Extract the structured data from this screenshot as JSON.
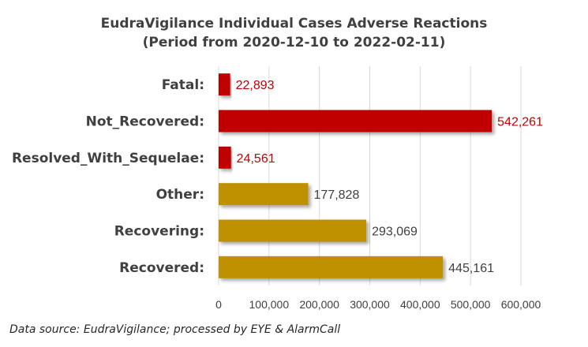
{
  "chart_data": {
    "type": "bar",
    "orientation": "horizontal",
    "title": "EudraVigilance Individual Cases Adverse Reactions",
    "subtitle": "(Period from 2020-12-10 to 2022-02-11)",
    "categories": [
      "Fatal:",
      "Not_Recovered:",
      "Resolved_With_Sequelae:",
      "Other:",
      "Recovering:",
      "Recovered:"
    ],
    "values": [
      22893,
      542261,
      24561,
      177828,
      293069,
      445161
    ],
    "data_labels": [
      "22,893",
      "542,261",
      "24,561",
      "177,828",
      "293,069",
      "445,161"
    ],
    "bar_colors": [
      "#C00000",
      "#C00000",
      "#C00000",
      "#BF9000",
      "#BF9000",
      "#BF9000"
    ],
    "label_colors": [
      "#C00000",
      "#C00000",
      "#C00000",
      "#404040",
      "#404040",
      "#404040"
    ],
    "xlim": [
      0,
      600000
    ],
    "xticks": [
      0,
      100000,
      200000,
      300000,
      400000,
      500000,
      600000
    ],
    "xtick_labels": [
      "0",
      "100,000",
      "200,000",
      "300,000",
      "400,000",
      "500,000",
      "600,000"
    ],
    "xlabel": "",
    "ylabel": "",
    "grid": true,
    "legend": "none",
    "source_note": "Data source: EudraVigilance; processed by EYE & AlarmCall"
  }
}
